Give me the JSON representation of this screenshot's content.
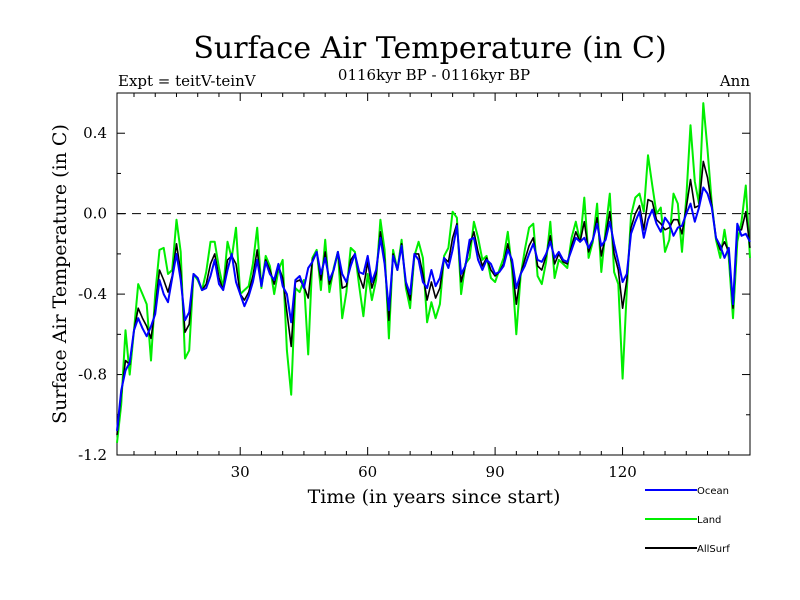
{
  "chart_data": {
    "type": "line",
    "title": "Surface Air Temperature (in C)",
    "subtitle": "0116kyr BP - 0116kyr BP",
    "expt_label": "Expt = teitV-teinV",
    "season_label": "Ann",
    "xlabel": "Time (in years since start)",
    "ylabel": "Surface Air Temperature (in C)",
    "xlim": [
      1,
      150
    ],
    "ylim": [
      -1.2,
      0.6
    ],
    "xticks": [
      30,
      60,
      90,
      120
    ],
    "yticks": [
      -1.2,
      -0.8,
      -0.4,
      0.0,
      0.4
    ],
    "ytick_labels": [
      "-1.2",
      "-0.8",
      "-0.4",
      "0.0",
      "0.4"
    ],
    "reference_line": 0.0,
    "x": [
      1,
      2,
      3,
      4,
      5,
      6,
      7,
      8,
      9,
      10,
      11,
      12,
      13,
      14,
      15,
      16,
      17,
      18,
      19,
      20,
      21,
      22,
      23,
      24,
      25,
      26,
      27,
      28,
      29,
      30,
      31,
      32,
      33,
      34,
      35,
      36,
      37,
      38,
      39,
      40,
      41,
      42,
      43,
      44,
      45,
      46,
      47,
      48,
      49,
      50,
      51,
      52,
      53,
      54,
      55,
      56,
      57,
      58,
      59,
      60,
      61,
      62,
      63,
      64,
      65,
      66,
      67,
      68,
      69,
      70,
      71,
      72,
      73,
      74,
      75,
      76,
      77,
      78,
      79,
      80,
      81,
      82,
      83,
      84,
      85,
      86,
      87,
      88,
      89,
      90,
      91,
      92,
      93,
      94,
      95,
      96,
      97,
      98,
      99,
      100,
      101,
      102,
      103,
      104,
      105,
      106,
      107,
      108,
      109,
      110,
      111,
      112,
      113,
      114,
      115,
      116,
      117,
      118,
      119,
      120,
      121,
      122,
      123,
      124,
      125,
      126,
      127,
      128,
      129,
      130,
      131,
      132,
      133,
      134,
      135,
      136,
      137,
      138,
      139,
      140,
      141,
      142,
      143,
      144,
      145,
      146,
      147,
      148,
      149,
      150
    ],
    "series": [
      {
        "name": "Ocean",
        "color": "#0000ff",
        "values": [
          -1.08,
          -0.88,
          -0.78,
          -0.74,
          -0.58,
          -0.52,
          -0.57,
          -0.61,
          -0.56,
          -0.5,
          -0.33,
          -0.4,
          -0.44,
          -0.32,
          -0.2,
          -0.33,
          -0.53,
          -0.49,
          -0.3,
          -0.32,
          -0.38,
          -0.37,
          -0.31,
          -0.23,
          -0.35,
          -0.38,
          -0.28,
          -0.2,
          -0.34,
          -0.4,
          -0.46,
          -0.41,
          -0.34,
          -0.23,
          -0.36,
          -0.24,
          -0.3,
          -0.33,
          -0.25,
          -0.36,
          -0.4,
          -0.54,
          -0.33,
          -0.31,
          -0.37,
          -0.27,
          -0.24,
          -0.19,
          -0.3,
          -0.22,
          -0.33,
          -0.28,
          -0.19,
          -0.3,
          -0.34,
          -0.26,
          -0.2,
          -0.29,
          -0.3,
          -0.21,
          -0.34,
          -0.28,
          -0.12,
          -0.25,
          -0.48,
          -0.21,
          -0.28,
          -0.16,
          -0.34,
          -0.4,
          -0.2,
          -0.23,
          -0.34,
          -0.37,
          -0.28,
          -0.36,
          -0.32,
          -0.22,
          -0.27,
          -0.18,
          -0.06,
          -0.3,
          -0.26,
          -0.13,
          -0.12,
          -0.23,
          -0.28,
          -0.23,
          -0.25,
          -0.3,
          -0.29,
          -0.26,
          -0.18,
          -0.23,
          -0.37,
          -0.3,
          -0.26,
          -0.2,
          -0.15,
          -0.23,
          -0.24,
          -0.2,
          -0.14,
          -0.22,
          -0.19,
          -0.23,
          -0.24,
          -0.18,
          -0.12,
          -0.14,
          -0.12,
          -0.17,
          -0.13,
          -0.05,
          -0.16,
          -0.13,
          -0.04,
          -0.15,
          -0.24,
          -0.34,
          -0.3,
          -0.1,
          -0.04,
          0.01,
          -0.12,
          -0.03,
          0.02,
          -0.05,
          -0.09,
          -0.02,
          -0.05,
          -0.11,
          -0.07,
          -0.06,
          0.0,
          0.05,
          -0.04,
          0.03,
          0.13,
          0.1,
          0.03,
          -0.12,
          -0.16,
          -0.22,
          -0.17,
          -0.45,
          -0.05,
          -0.11,
          -0.1,
          -0.14
        ]
      },
      {
        "name": "Land",
        "color": "#00ee00",
        "values": [
          -1.14,
          -0.95,
          -0.58,
          -0.8,
          -0.58,
          -0.35,
          -0.4,
          -0.45,
          -0.73,
          -0.4,
          -0.18,
          -0.17,
          -0.3,
          -0.28,
          -0.03,
          -0.19,
          -0.72,
          -0.68,
          -0.3,
          -0.33,
          -0.38,
          -0.29,
          -0.14,
          -0.14,
          -0.27,
          -0.37,
          -0.14,
          -0.22,
          -0.07,
          -0.4,
          -0.38,
          -0.36,
          -0.25,
          -0.07,
          -0.37,
          -0.21,
          -0.26,
          -0.4,
          -0.28,
          -0.23,
          -0.68,
          -0.9,
          -0.37,
          -0.39,
          -0.33,
          -0.7,
          -0.22,
          -0.18,
          -0.38,
          -0.13,
          -0.39,
          -0.27,
          -0.19,
          -0.52,
          -0.39,
          -0.17,
          -0.19,
          -0.36,
          -0.51,
          -0.3,
          -0.43,
          -0.33,
          -0.03,
          -0.18,
          -0.62,
          -0.18,
          -0.28,
          -0.13,
          -0.37,
          -0.47,
          -0.21,
          -0.14,
          -0.22,
          -0.54,
          -0.44,
          -0.52,
          -0.45,
          -0.21,
          -0.17,
          0.01,
          -0.02,
          -0.4,
          -0.25,
          -0.22,
          -0.04,
          -0.12,
          -0.23,
          -0.21,
          -0.32,
          -0.34,
          -0.28,
          -0.22,
          -0.09,
          -0.28,
          -0.6,
          -0.31,
          -0.18,
          -0.07,
          -0.05,
          -0.31,
          -0.35,
          -0.24,
          -0.04,
          -0.32,
          -0.23,
          -0.25,
          -0.27,
          -0.12,
          -0.04,
          -0.14,
          0.08,
          -0.22,
          -0.14,
          0.05,
          -0.29,
          -0.08,
          0.1,
          -0.29,
          -0.35,
          -0.82,
          -0.38,
          -0.01,
          0.08,
          0.1,
          0.01,
          0.29,
          0.14,
          0.0,
          0.03,
          -0.19,
          -0.13,
          0.1,
          0.05,
          -0.19,
          0.08,
          0.44,
          0.16,
          0.05,
          0.55,
          0.32,
          0.05,
          -0.13,
          -0.22,
          -0.08,
          -0.22,
          -0.52,
          -0.14,
          -0.04,
          0.14,
          -0.22
        ]
      },
      {
        "name": "AllSurf",
        "color": "#000000",
        "values": [
          -1.1,
          -0.9,
          -0.73,
          -0.75,
          -0.58,
          -0.47,
          -0.52,
          -0.56,
          -0.62,
          -0.47,
          -0.28,
          -0.33,
          -0.39,
          -0.31,
          -0.15,
          -0.29,
          -0.59,
          -0.55,
          -0.3,
          -0.32,
          -0.38,
          -0.35,
          -0.25,
          -0.2,
          -0.32,
          -0.38,
          -0.23,
          -0.21,
          -0.25,
          -0.4,
          -0.43,
          -0.39,
          -0.31,
          -0.18,
          -0.36,
          -0.23,
          -0.28,
          -0.35,
          -0.26,
          -0.32,
          -0.49,
          -0.66,
          -0.34,
          -0.33,
          -0.36,
          -0.42,
          -0.23,
          -0.19,
          -0.33,
          -0.19,
          -0.35,
          -0.28,
          -0.19,
          -0.37,
          -0.36,
          -0.23,
          -0.2,
          -0.31,
          -0.37,
          -0.24,
          -0.37,
          -0.3,
          -0.09,
          -0.23,
          -0.53,
          -0.2,
          -0.28,
          -0.15,
          -0.35,
          -0.43,
          -0.2,
          -0.2,
          -0.3,
          -0.43,
          -0.34,
          -0.42,
          -0.37,
          -0.22,
          -0.24,
          -0.12,
          -0.05,
          -0.34,
          -0.26,
          -0.16,
          -0.09,
          -0.19,
          -0.26,
          -0.22,
          -0.28,
          -0.31,
          -0.29,
          -0.25,
          -0.15,
          -0.25,
          -0.45,
          -0.3,
          -0.23,
          -0.16,
          -0.12,
          -0.26,
          -0.28,
          -0.21,
          -0.11,
          -0.25,
          -0.2,
          -0.24,
          -0.25,
          -0.16,
          -0.09,
          -0.14,
          -0.04,
          -0.19,
          -0.13,
          -0.02,
          -0.21,
          -0.11,
          0.01,
          -0.2,
          -0.28,
          -0.47,
          -0.33,
          -0.07,
          0.0,
          0.04,
          -0.08,
          0.07,
          0.06,
          -0.03,
          -0.05,
          -0.08,
          -0.07,
          -0.03,
          -0.03,
          -0.1,
          0.03,
          0.17,
          0.03,
          0.04,
          0.26,
          0.18,
          0.04,
          -0.12,
          -0.18,
          -0.14,
          -0.19,
          -0.47,
          -0.08,
          -0.08,
          0.01,
          -0.17
        ]
      }
    ],
    "legend_position": "bottom-right"
  }
}
